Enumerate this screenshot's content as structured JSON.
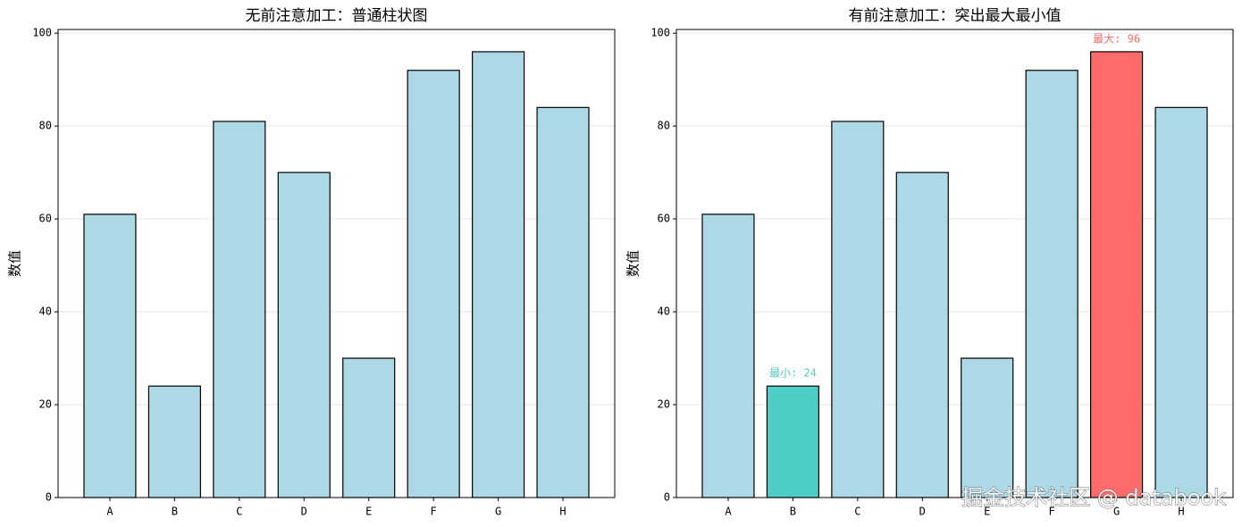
{
  "chart_data": [
    {
      "type": "bar",
      "title": "无前注意加工：普通柱状图",
      "ylabel": "数值",
      "categories": [
        "A",
        "B",
        "C",
        "D",
        "E",
        "F",
        "G",
        "H"
      ],
      "values": [
        61,
        24,
        81,
        70,
        30,
        92,
        96,
        84
      ],
      "colors": [
        "#add8e6",
        "#add8e6",
        "#add8e6",
        "#add8e6",
        "#add8e6",
        "#add8e6",
        "#add8e6",
        "#add8e6"
      ],
      "ylim": [
        0,
        100.8
      ],
      "yticks": [
        0,
        20,
        40,
        60,
        80,
        100
      ],
      "grid": true
    },
    {
      "type": "bar",
      "title": "有前注意加工：突出最大最小值",
      "ylabel": "数值",
      "categories": [
        "A",
        "B",
        "C",
        "D",
        "E",
        "F",
        "G",
        "H"
      ],
      "values": [
        61,
        24,
        81,
        70,
        30,
        92,
        96,
        84
      ],
      "value_labels": [
        null,
        "最小: 24",
        null,
        null,
        null,
        null,
        "最大: 96",
        null
      ],
      "colors": [
        "#add8e6",
        "#4ecdc4",
        "#add8e6",
        "#add8e6",
        "#add8e6",
        "#add8e6",
        "#ff6b6b",
        "#add8e6"
      ],
      "ylim": [
        0,
        100.8
      ],
      "yticks": [
        0,
        20,
        40,
        60,
        80,
        100
      ],
      "grid": true
    }
  ],
  "watermark": "掘金技术社区 @ databook"
}
